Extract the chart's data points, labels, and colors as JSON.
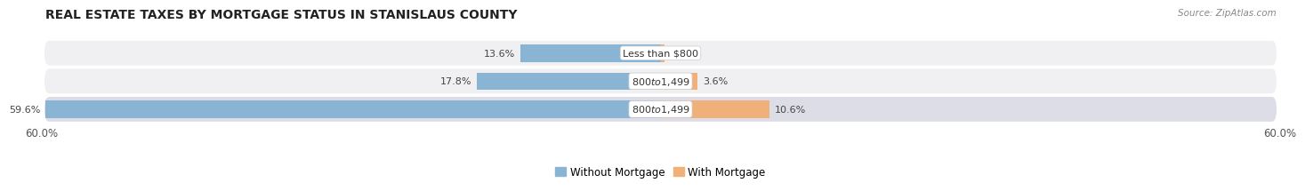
{
  "title": "REAL ESTATE TAXES BY MORTGAGE STATUS IN STANISLAUS COUNTY",
  "source": "Source: ZipAtlas.com",
  "rows": [
    {
      "label": "Less than $800",
      "without_mortgage": 13.6,
      "with_mortgage": 0.43
    },
    {
      "label": "$800 to $1,499",
      "without_mortgage": 17.8,
      "with_mortgage": 3.6
    },
    {
      "label": "$800 to $1,499",
      "without_mortgage": 59.6,
      "with_mortgage": 10.6
    }
  ],
  "color_without": "#8ab4d4",
  "color_with": "#f0b07a",
  "bar_height": 0.62,
  "xlim": 60.0,
  "legend_without": "Without Mortgage",
  "legend_with": "With Mortgage",
  "row_bg_light": "#f0f0f2",
  "row_bg_dark": "#dddde8",
  "title_fontsize": 10,
  "tick_fontsize": 8.5,
  "label_fontsize": 8,
  "source_fontsize": 7.5,
  "value_label_color": "#444444",
  "center_label_bg": "#ffffff"
}
